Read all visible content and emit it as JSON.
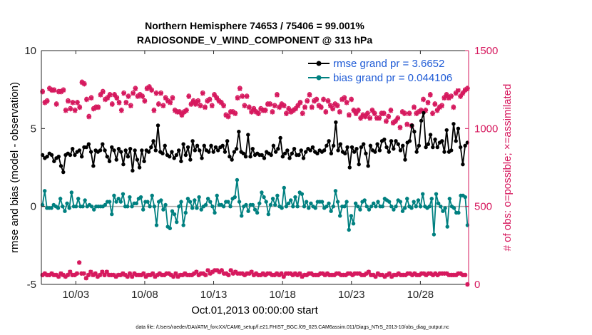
{
  "chart_data": {
    "type": "line",
    "title_line1": "Northern Hemisphere 74653 / 75406 = 99.001%",
    "title_line2": "RADIOSONDE_V_WIND_COMPONENT @ 313 hPa",
    "xlabel": "Oct.01,2013 00:00:00 start",
    "ylabel_left": "rmse and bias (model - observation)",
    "ylabel_right": "# of obs: o=possible; ×=assimilated",
    "footer": "data file: /Users/raeder/DAI/ATM_forcXX/CAM6_setup/f.e21.FHIST_BGC.f09_025.CAM6assim.011/Diags_NTrS_2013-10/obs_diag_output.nc",
    "x_range_days": [
      0,
      31
    ],
    "x_ticks": [
      {
        "day": 2.5,
        "label": "10/03"
      },
      {
        "day": 7.5,
        "label": "10/08"
      },
      {
        "day": 12.5,
        "label": "10/13"
      },
      {
        "day": 17.5,
        "label": "10/18"
      },
      {
        "day": 22.5,
        "label": "10/23"
      },
      {
        "day": 27.5,
        "label": "10/28"
      }
    ],
    "ylim_left": [
      -5,
      10
    ],
    "yticks_left": [
      "-5",
      "0",
      "5",
      "10"
    ],
    "ylim_right": [
      0,
      1500
    ],
    "yticks_right": [
      "0",
      "500",
      "1000",
      "1500"
    ],
    "colors": {
      "rmse": "#000000",
      "bias": "#008080",
      "obs": "#d6195e",
      "zero": "#aaaaaa"
    },
    "legend": [
      {
        "name": "rmse grand pr = 3.6652",
        "color": "#000000"
      },
      {
        "name": "bias grand pr = 0.044106",
        "color": "#008080"
      }
    ],
    "legend_text_color": "#1f5bd6",
    "series": [
      {
        "name": "rmse",
        "values": [
          3.3,
          3.1,
          3.2,
          3.4,
          3.3,
          2.9,
          3.1,
          3.2,
          2.6,
          2.2,
          3.3,
          3.4,
          3.3,
          3.7,
          3.3,
          3.5,
          3.6,
          3.2,
          3.8,
          3.8,
          4.0,
          3.5,
          2.6,
          3.6,
          3.5,
          3.6,
          4.0,
          3.6,
          3.2,
          2.9,
          3.8,
          3.6,
          3.0,
          3.7,
          3.5,
          2.7,
          3.6,
          3.2,
          3.7,
          2.3,
          3.6,
          3.0,
          2.5,
          3.6,
          2.9,
          3.6,
          3.5,
          3.8,
          4.2,
          3.6,
          5.2,
          3.5,
          3.4,
          3.9,
          3.3,
          3.2,
          3.5,
          3.1,
          3.3,
          3.6,
          2.9,
          4.0,
          3.3,
          3.8,
          3.0,
          4.2,
          3.6,
          3.9,
          3.6,
          3.1,
          3.9,
          3.6,
          3.5,
          3.9,
          3.5,
          3.8,
          3.6,
          3.8,
          3.9,
          3.5,
          4.2,
          3.2,
          3.0,
          3.5,
          3.7,
          4.8,
          3.5,
          3.4,
          3.2,
          4.6,
          3.2,
          3.7,
          3.3,
          3.4,
          3.3,
          3.3,
          3.1,
          3.5,
          3.4,
          3.3,
          3.9,
          3.5,
          3.7,
          4.4,
          3.2,
          3.4,
          3.6,
          3.1,
          3.4,
          3.7,
          3.3,
          3.3,
          3.6,
          3.1,
          3.5,
          3.7,
          3.6,
          3.8,
          3.5,
          3.4,
          3.6,
          3.5,
          3.6,
          3.9,
          4.2,
          3.4,
          3.9,
          5.4,
          3.6,
          4.0,
          3.5,
          3.4,
          3.8,
          2.5,
          3.8,
          3.5,
          3.7,
          2.7,
          3.8,
          4.0,
          3.4,
          2.6,
          3.9,
          3.6,
          3.5,
          4.0,
          3.6,
          4.2,
          4.3,
          3.8,
          3.5,
          4.2,
          3.7,
          4.2,
          4.0,
          3.6,
          3.9,
          3.0,
          4.1,
          4.2,
          5.2,
          4.8,
          3.5,
          3.9,
          5.5,
          6.0,
          3.8,
          4.0,
          4.6,
          3.8,
          4.3,
          3.8,
          4.1,
          4.2,
          3.5,
          4.9,
          3.5,
          3.6,
          5.3,
          4.2,
          5.0,
          3.8,
          2.7,
          3.9,
          4.1
        ]
      },
      {
        "name": "bias",
        "values": [
          0.1,
          1.0,
          -0.1,
          -0.1,
          -0.1,
          0.1,
          0.0,
          -0.1,
          0.5,
          0.0,
          -0.3,
          0.2,
          -0.1,
          0.9,
          0.0,
          0.0,
          0.5,
          0.0,
          0.0,
          0.4,
          0.0,
          0.1,
          0.0,
          -0.2,
          0.0,
          0.0,
          0.0,
          0.0,
          0.1,
          0.3,
          0.3,
          -0.5,
          0.7,
          0.3,
          0.5,
          0.3,
          0.8,
          0.0,
          0.0,
          0.6,
          0.0,
          0.2,
          0.2,
          0.5,
          0.6,
          -0.2,
          0.3,
          0.3,
          0.0,
          0.7,
          0.0,
          -1.2,
          0.3,
          0.4,
          -0.2,
          0.1,
          -1.3,
          -1.4,
          -0.3,
          -0.5,
          -1.0,
          0.0,
          0.3,
          -1.2,
          -0.4,
          0.5,
          0.3,
          -0.1,
          0.4,
          -0.1,
          0.6,
          -0.2,
          0.0,
          0.1,
          0.5,
          0.3,
          0.0,
          -0.4,
          0.7,
          0.1,
          0.1,
          0.0,
          0.3,
          0.3,
          0.0,
          0.5,
          0.6,
          1.7,
          0.3,
          -0.6,
          0.0,
          0.1,
          -0.3,
          0.1,
          0.1,
          -0.2,
          -0.4,
          0.2,
          0.9,
          0.6,
          0.3,
          -0.5,
          0.1,
          0.5,
          0.1,
          0.7,
          0.0,
          -0.1,
          1.2,
          0.0,
          0.2,
          0.4,
          0.0,
          0.6,
          0.0,
          0.9,
          0.8,
          0.0,
          0.3,
          -0.1,
          0.2,
          0.0,
          -0.1,
          0.3,
          0.3,
          0.3,
          -0.1,
          0.0,
          0.2,
          -0.3,
          0.0,
          1.0,
          0.3,
          -0.6,
          0.0,
          0.0,
          0.3,
          -1.5,
          -0.6,
          -1.1,
          0.2,
          0.0,
          -0.2,
          0.3,
          0.4,
          0.0,
          -0.2,
          0.0,
          0.2,
          0.0,
          0.3,
          0.0,
          0.0,
          0.5,
          0.4,
          0.3,
          0.0,
          -0.2,
          0.0,
          0.4,
          0.3,
          -0.3,
          -0.1,
          0.5,
          0.0,
          -0.1,
          0.3,
          0.0,
          0.4,
          0.0,
          0.8,
          0.0,
          -0.1,
          0.0,
          0.5,
          -1.8,
          0.8,
          0.2,
          0.0,
          -0.3,
          -0.1,
          -1.3,
          0.5,
          0.0,
          -0.1,
          -0.4,
          -0.4,
          0.7,
          0.7,
          0.6,
          -1.2
        ]
      },
      {
        "name": "obs_possible",
        "values": [
          1240,
          1170,
          1180,
          1260,
          1250,
          1250,
          1160,
          1240,
          1240,
          1250,
          1120,
          1180,
          1130,
          1170,
          1120,
          1170,
          1140,
          1300,
          1290,
          1190,
          1080,
          1200,
          1130,
          1140,
          1140,
          1220,
          1240,
          1190,
          1200,
          1220,
          1160,
          1220,
          1200,
          1170,
          1120,
          1230,
          1170,
          1210,
          1150,
          1230,
          1260,
          1210,
          1220,
          1210,
          1180,
          1260,
          1270,
          1250,
          1120,
          1230,
          1160,
          1230,
          1150,
          1200,
          1180,
          1170,
          1200,
          1120,
          1110,
          1110,
          1090,
          1110,
          1120,
          1210,
          1160,
          1180,
          1160,
          1180,
          1150,
          1230,
          1140,
          1180,
          1190,
          1150,
          1220,
          1200,
          1180,
          1170,
          1150,
          1090,
          1080,
          1110,
          1110,
          1100,
          1200,
          1260,
          1210,
          1150,
          1210,
          1140,
          1110,
          1130,
          1110,
          1100,
          1130,
          1120,
          1120,
          1160,
          1160,
          1110,
          1150,
          1220,
          1140,
          1160,
          1150,
          1100,
          1130,
          1110,
          1120,
          1130,
          1150,
          1170,
          1100,
          1140,
          1180,
          1220,
          1140,
          1180,
          1190,
          1150,
          1140,
          1190,
          1110,
          1180,
          1150,
          1130,
          1160,
          1150,
          1110,
          1190,
          1200,
          1170,
          1090,
          1190,
          1120,
          1100,
          1120,
          1070,
          1090,
          1080,
          1100,
          1070,
          1120,
          1100,
          1070,
          1070,
          1100,
          1100,
          1050,
          1080,
          1120,
          1040,
          1050,
          1070,
          1010,
          1110,
          1100,
          1030,
          1100,
          1020,
          1140,
          1100,
          1110,
          1120,
          1190,
          1120,
          1170,
          1220,
          1100,
          1160,
          1120,
          1140,
          1150,
          1200,
          1220,
          1200,
          1210,
          1140,
          1230,
          1250,
          1210,
          1230,
          1250,
          1260
        ]
      },
      {
        "name": "obs_assimilated",
        "values": [
          1235,
          1165,
          1175,
          1255,
          1245,
          1245,
          1155,
          1235,
          1235,
          1245,
          1115,
          1175,
          1125,
          1165,
          1115,
          1165,
          1135,
          1295,
          1285,
          1185,
          1075,
          1195,
          1125,
          1135,
          1135,
          1215,
          1235,
          1185,
          1195,
          1215,
          1155,
          1215,
          1195,
          1165,
          1115,
          1225,
          1165,
          1205,
          1145,
          1225,
          1255,
          1205,
          1215,
          1205,
          1175,
          1255,
          1265,
          1245,
          1115,
          1225,
          1155,
          1225,
          1145,
          1195,
          1175,
          1165,
          1195,
          1115,
          1105,
          1105,
          1085,
          1105,
          1115,
          1205,
          1155,
          1175,
          1155,
          1175,
          1145,
          1225,
          1135,
          1175,
          1185,
          1145,
          1215,
          1195,
          1175,
          1165,
          1145,
          1085,
          1075,
          1105,
          1105,
          1095,
          1195,
          1255,
          1205,
          1145,
          1205,
          1135,
          1105,
          1125,
          1105,
          1095,
          1125,
          1115,
          1115,
          1155,
          1155,
          1105,
          1145,
          1215,
          1135,
          1155,
          1145,
          1095,
          1125,
          1105,
          1115,
          1125,
          1145,
          1165,
          1095,
          1135,
          1175,
          1215,
          1135,
          1175,
          1185,
          1145,
          1135,
          1185,
          1105,
          1175,
          1145,
          1125,
          1155,
          1145,
          1105,
          1185,
          1195,
          1165,
          1085,
          1185,
          1115,
          1095,
          1115,
          1065,
          1085,
          1075,
          1095,
          1065,
          1115,
          1095,
          1065,
          1065,
          1095,
          1095,
          1045,
          1075,
          1115,
          1035,
          1045,
          1065,
          1005,
          1105,
          1095,
          1025,
          1095,
          1015,
          1135,
          1095,
          1105,
          1115,
          1185,
          1115,
          1165,
          1215,
          1095,
          1155,
          1115,
          1135,
          1145,
          1195,
          1215,
          1195,
          1205,
          1135,
          1225,
          1245,
          1205,
          1225,
          1245,
          1255
        ]
      },
      {
        "name": "obs_low",
        "values": [
          60,
          70,
          60,
          60,
          70,
          60,
          60,
          50,
          70,
          60,
          50,
          60,
          80,
          60,
          60,
          70,
          140,
          70,
          70,
          40,
          60,
          80,
          60,
          70,
          50,
          60,
          80,
          60,
          80,
          60,
          60,
          60,
          50,
          60,
          60,
          70,
          60,
          50,
          70,
          50,
          70,
          60,
          60,
          60,
          70,
          50,
          60,
          60,
          70,
          50,
          60,
          70,
          60,
          60,
          70,
          70,
          60,
          50,
          70,
          50,
          60,
          60,
          70,
          60,
          60,
          60,
          70,
          80,
          60,
          70,
          70,
          60,
          90,
          70,
          80,
          90,
          90,
          80,
          90,
          70,
          70,
          60,
          90,
          70,
          80,
          70,
          70,
          70,
          60,
          70,
          70,
          80,
          60,
          70,
          60,
          60,
          70,
          60,
          70,
          70,
          60,
          60,
          70,
          60,
          70,
          50,
          70,
          70,
          70,
          60,
          70,
          60,
          70,
          50,
          60,
          60,
          70,
          70,
          60,
          60,
          60,
          70,
          70,
          60,
          70,
          60,
          60,
          60,
          70,
          70,
          60,
          60,
          60,
          70,
          70,
          60,
          70,
          70,
          70,
          60,
          60,
          70,
          80,
          60,
          60,
          50,
          70,
          60,
          60,
          50,
          60,
          70,
          50,
          60,
          60,
          70,
          60,
          60,
          60,
          70,
          70,
          60,
          70,
          60,
          60,
          70,
          70,
          60,
          70,
          70,
          60,
          70,
          60,
          70,
          70,
          70,
          70,
          60,
          60,
          60,
          60,
          70,
          70,
          60,
          60,
          0
        ]
      }
    ]
  }
}
